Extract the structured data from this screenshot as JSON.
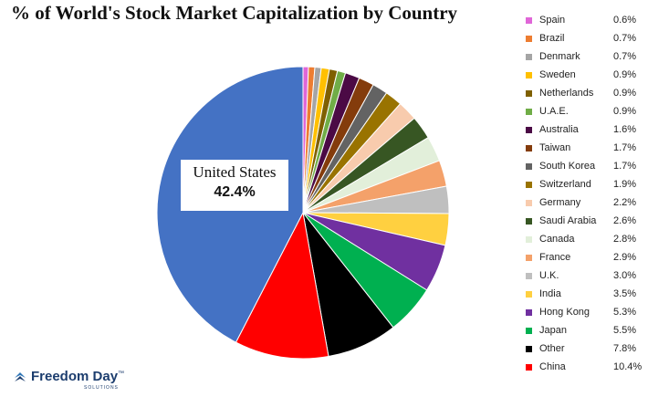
{
  "chart_data": {
    "type": "pie",
    "title": "% of World's Stock Market Capitalization by Country",
    "slices": [
      {
        "label": "Spain",
        "value": 0.6,
        "display": "0.6%",
        "color": "#e066d8"
      },
      {
        "label": "Brazil",
        "value": 0.7,
        "display": "0.7%",
        "color": "#ed7d31"
      },
      {
        "label": "Denmark",
        "value": 0.7,
        "display": "0.7%",
        "color": "#a5a5a5"
      },
      {
        "label": "Sweden",
        "value": 0.9,
        "display": "0.9%",
        "color": "#ffc000"
      },
      {
        "label": "Netherlands",
        "value": 0.9,
        "display": "0.9%",
        "color": "#7f6000"
      },
      {
        "label": "U.A.E.",
        "value": 0.9,
        "display": "0.9%",
        "color": "#70ad47"
      },
      {
        "label": "Australia",
        "value": 1.6,
        "display": "1.6%",
        "color": "#4b0a45"
      },
      {
        "label": "Taiwan",
        "value": 1.7,
        "display": "1.7%",
        "color": "#843c0c"
      },
      {
        "label": "South Korea",
        "value": 1.7,
        "display": "1.7%",
        "color": "#636363"
      },
      {
        "label": "Switzerland",
        "value": 1.9,
        "display": "1.9%",
        "color": "#997300"
      },
      {
        "label": "Germany",
        "value": 2.2,
        "display": "2.2%",
        "color": "#f8cbad"
      },
      {
        "label": "Saudi Arabia",
        "value": 2.6,
        "display": "2.6%",
        "color": "#375623"
      },
      {
        "label": "Canada",
        "value": 2.8,
        "display": "2.8%",
        "color": "#e2efda"
      },
      {
        "label": "France",
        "value": 2.9,
        "display": "2.9%",
        "color": "#f4a16a"
      },
      {
        "label": "U.K.",
        "value": 3.0,
        "display": "3.0%",
        "color": "#bfbfbf"
      },
      {
        "label": "India",
        "value": 3.5,
        "display": "3.5%",
        "color": "#ffd040"
      },
      {
        "label": "Hong Kong",
        "value": 5.3,
        "display": "5.3%",
        "color": "#7030a0"
      },
      {
        "label": "Japan",
        "value": 5.5,
        "display": "5.5%",
        "color": "#00b050"
      },
      {
        "label": "Other",
        "value": 7.8,
        "display": "7.8%",
        "color": "#000000"
      },
      {
        "label": "China",
        "value": 10.4,
        "display": "10.4%",
        "color": "#ff0000"
      },
      {
        "label": "United States",
        "value": 42.4,
        "display": "42.4%",
        "color": "#4472c4"
      }
    ],
    "callout": {
      "label": "United States",
      "value": "42.4%"
    },
    "legend_position": "right"
  },
  "branding": {
    "logo_text": "Freedom Day",
    "logo_trademark": "™",
    "logo_sub": "SOLUTIONS"
  }
}
